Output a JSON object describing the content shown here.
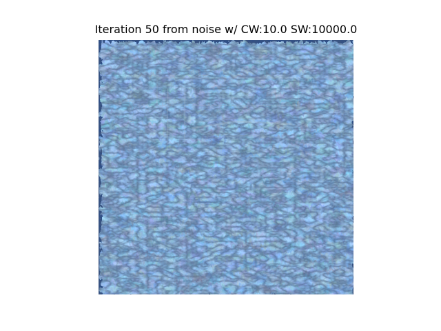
{
  "figure": {
    "title": "Iteration 50 from noise w/ CW:10.0 SW:10000.0"
  },
  "image": {
    "icon": "style-transfer-noise-image",
    "palette": {
      "base": "#2f4f86",
      "deep_blue": "#1d3a8a",
      "teal": "#3f8a8a",
      "olive": "#8a8f3a",
      "yellow": "#c4b44a",
      "dark": "#142036"
    }
  }
}
